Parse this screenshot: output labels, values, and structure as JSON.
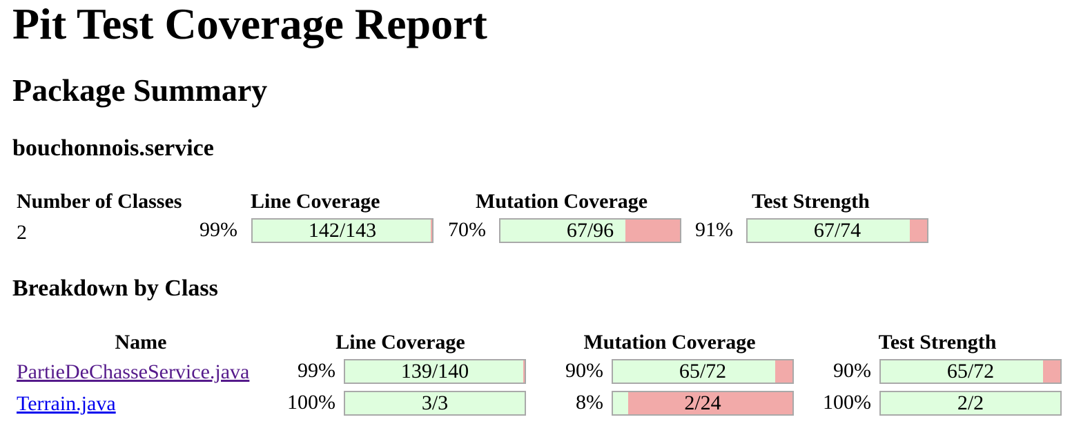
{
  "title": "Pit Test Coverage Report",
  "package_summary_heading": "Package Summary",
  "package_name": "bouchonnois.service",
  "summary": {
    "headers": {
      "classes": "Number of Classes",
      "line": "Line Coverage",
      "mutation": "Mutation Coverage",
      "strength": "Test Strength"
    },
    "classes_count": "2",
    "line": {
      "pct": "99%",
      "label": "142/143",
      "covered": 142,
      "total": 143
    },
    "mutation": {
      "pct": "70%",
      "label": "67/96",
      "covered": 67,
      "total": 96
    },
    "strength": {
      "pct": "91%",
      "label": "67/74",
      "covered": 67,
      "total": 74
    }
  },
  "breakdown_heading": "Breakdown by Class",
  "breakdown": {
    "headers": {
      "name": "Name",
      "line": "Line Coverage",
      "mutation": "Mutation Coverage",
      "strength": "Test Strength"
    },
    "rows": [
      {
        "name": "PartieDeChasseService.java",
        "visited": true,
        "line": {
          "pct": "99%",
          "label": "139/140",
          "covered": 139,
          "total": 140
        },
        "mutation": {
          "pct": "90%",
          "label": "65/72",
          "covered": 65,
          "total": 72
        },
        "strength": {
          "pct": "90%",
          "label": "65/72",
          "covered": 65,
          "total": 72
        }
      },
      {
        "name": "Terrain.java",
        "visited": false,
        "line": {
          "pct": "100%",
          "label": "3/3",
          "covered": 3,
          "total": 3
        },
        "mutation": {
          "pct": "8%",
          "label": "2/24",
          "covered": 2,
          "total": 24
        },
        "strength": {
          "pct": "100%",
          "label": "2/2",
          "covered": 2,
          "total": 2
        }
      }
    ]
  },
  "colors": {
    "covered": "#dffede",
    "uncovered": "#f2aaa9",
    "bar_border": "#a9a9a9",
    "link_visited": "#551a8b",
    "link_unvisited": "#0000ee"
  }
}
